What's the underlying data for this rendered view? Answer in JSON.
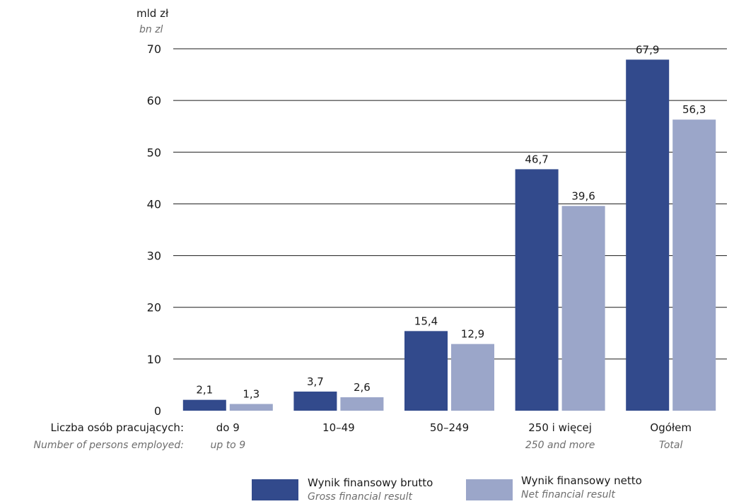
{
  "chart_data": {
    "type": "bar",
    "unit": {
      "pl": "mld zł",
      "en": "bn zl"
    },
    "x_axis_label": {
      "pl": "Liczba osób pracujących:",
      "en": "Number of persons employed:"
    },
    "categories": [
      {
        "pl": "do 9",
        "en": "up to 9"
      },
      {
        "pl": "10–49",
        "en": ""
      },
      {
        "pl": "50–249",
        "en": ""
      },
      {
        "pl": "250 i więcej",
        "en": "250 and more"
      },
      {
        "pl": "Ogółem",
        "en": "Total"
      }
    ],
    "series": [
      {
        "name": {
          "pl": "Wynik finansowy brutto",
          "en": "Gross financial result"
        },
        "color": "#324a8c",
        "values": [
          2.1,
          3.7,
          15.4,
          46.7,
          67.9
        ],
        "labels": [
          "2,1",
          "3,7",
          "15,4",
          "46,7",
          "67,9"
        ]
      },
      {
        "name": {
          "pl": "Wynik finansowy netto",
          "en": "Net financial result"
        },
        "color": "#9ba6c9",
        "values": [
          1.3,
          2.6,
          12.9,
          39.6,
          56.3
        ],
        "labels": [
          "1,3",
          "2,6",
          "12,9",
          "39,6",
          "56,3"
        ]
      }
    ],
    "y_ticks": [
      0,
      10,
      20,
      30,
      40,
      50,
      60,
      70
    ],
    "ylim": [
      0,
      70
    ],
    "grid": true,
    "legend_position": "bottom"
  }
}
